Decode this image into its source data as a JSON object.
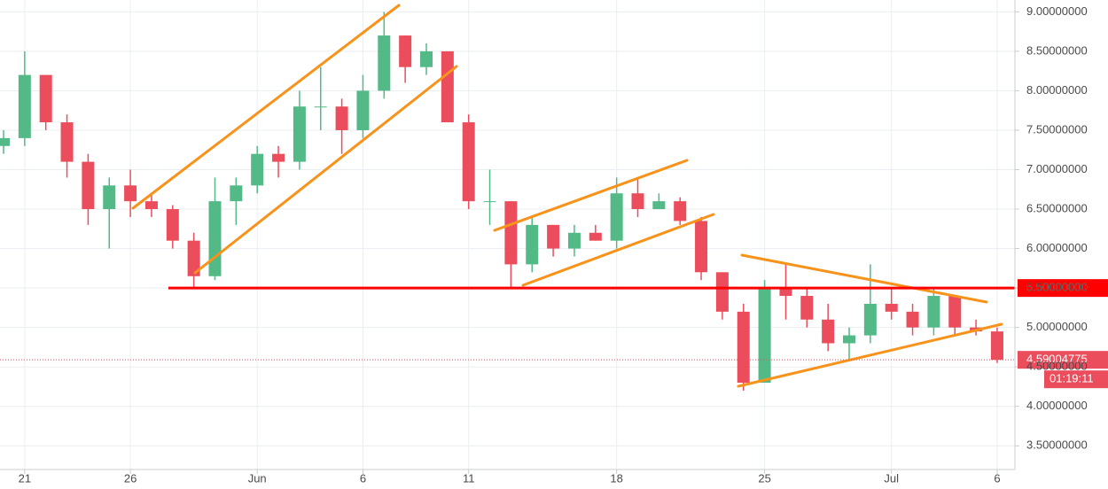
{
  "chart_data": {
    "type": "candlestick",
    "x": [
      "May 20",
      "May 21",
      "May 22",
      "May 23",
      "May 24",
      "May 25",
      "May 26",
      "May 27",
      "May 28",
      "May 29",
      "May 30",
      "May 31",
      "Jun 1",
      "Jun 2",
      "Jun 3",
      "Jun 4",
      "Jun 5",
      "Jun 6",
      "Jun 7",
      "Jun 8",
      "Jun 9",
      "Jun 10",
      "Jun 11",
      "Jun 12",
      "Jun 13",
      "Jun 14",
      "Jun 15",
      "Jun 16",
      "Jun 17",
      "Jun 18",
      "Jun 19",
      "Jun 20",
      "Jun 21",
      "Jun 22",
      "Jun 23",
      "Jun 24",
      "Jun 25",
      "Jun 26",
      "Jun 27",
      "Jun 28",
      "Jun 29",
      "Jun 30",
      "Jul 1",
      "Jul 2",
      "Jul 3",
      "Jul 4",
      "Jul 5",
      "Jul 6"
    ],
    "open": [
      7.3,
      7.4,
      8.2,
      7.6,
      7.1,
      6.5,
      6.8,
      6.6,
      6.5,
      6.1,
      5.65,
      6.6,
      6.8,
      7.2,
      7.1,
      7.8,
      7.8,
      7.5,
      8.0,
      8.7,
      8.3,
      8.5,
      7.6,
      6.6,
      6.6,
      5.8,
      6.3,
      6.0,
      6.2,
      6.1,
      6.7,
      6.5,
      6.6,
      6.35,
      5.7,
      5.2,
      4.3,
      5.5,
      5.4,
      5.1,
      4.8,
      4.9,
      5.3,
      5.2,
      5.0,
      5.4,
      5.0,
      4.95
    ],
    "high": [
      7.5,
      8.5,
      8.2,
      7.7,
      7.2,
      6.9,
      7.0,
      6.7,
      6.55,
      6.2,
      6.9,
      6.9,
      7.3,
      7.3,
      8.0,
      8.3,
      7.9,
      8.2,
      9.0,
      8.7,
      8.6,
      8.5,
      7.7,
      7.0,
      6.6,
      6.4,
      6.3,
      6.3,
      6.3,
      6.9,
      6.9,
      6.7,
      6.65,
      6.4,
      5.7,
      5.3,
      5.6,
      5.8,
      5.5,
      5.3,
      5.0,
      5.8,
      5.5,
      5.3,
      5.5,
      5.4,
      5.1,
      5.0
    ],
    "low": [
      7.2,
      7.3,
      7.5,
      6.9,
      6.3,
      6.0,
      6.4,
      6.4,
      6.0,
      5.5,
      5.6,
      6.3,
      6.7,
      6.9,
      7.0,
      7.5,
      7.2,
      7.4,
      7.9,
      8.1,
      8.2,
      7.6,
      6.5,
      6.3,
      5.5,
      5.7,
      5.9,
      5.9,
      6.1,
      6.0,
      6.4,
      6.5,
      6.3,
      5.6,
      5.1,
      4.2,
      4.3,
      5.1,
      5.0,
      4.7,
      4.6,
      4.8,
      5.1,
      4.9,
      4.9,
      4.9,
      4.9,
      4.55
    ],
    "close": [
      7.4,
      8.2,
      7.6,
      7.1,
      6.5,
      6.8,
      6.6,
      6.5,
      6.1,
      5.65,
      6.6,
      6.8,
      7.2,
      7.1,
      7.8,
      7.8,
      7.5,
      8.0,
      8.7,
      8.3,
      8.5,
      7.6,
      6.6,
      6.6,
      5.8,
      6.3,
      6.0,
      6.2,
      6.1,
      6.7,
      6.5,
      6.6,
      6.35,
      5.7,
      5.2,
      4.3,
      5.5,
      5.4,
      5.1,
      4.8,
      4.9,
      5.3,
      5.2,
      5.0,
      5.4,
      5.0,
      4.95,
      4.59
    ],
    "up_color": "#53b987",
    "down_color": "#eb4d5c",
    "ylim": [
      3.2,
      9.15
    ],
    "yticks": [
      {
        "value": 3.5,
        "label": "3.50000000"
      },
      {
        "value": 4,
        "label": "4.00000000"
      },
      {
        "value": 4.5,
        "label": "4.50000000"
      },
      {
        "value": 5,
        "label": "5.00000000"
      },
      {
        "value": 5.5,
        "label": "5.50000000"
      },
      {
        "value": 6,
        "label": "6.00000000"
      },
      {
        "value": 6.5,
        "label": "6.50000000"
      },
      {
        "value": 7,
        "label": "7.00000000"
      },
      {
        "value": 7.5,
        "label": "7.50000000"
      },
      {
        "value": 8,
        "label": "8.00000000"
      },
      {
        "value": 8.5,
        "label": "8.50000000"
      },
      {
        "value": 9,
        "label": "9.00000000"
      }
    ],
    "xticks": [
      {
        "value": "May 21",
        "label": "21"
      },
      {
        "value": "May 26",
        "label": "26"
      },
      {
        "value": "Jun 1",
        "label": "Jun"
      },
      {
        "value": "Jun 6",
        "label": "6"
      },
      {
        "value": "Jun 11",
        "label": "11"
      },
      {
        "value": "Jun 18",
        "label": "18"
      },
      {
        "value": "Jun 25",
        "label": "25"
      },
      {
        "value": "Jul 1",
        "label": "Jul"
      },
      {
        "value": "Jul 6",
        "label": "6"
      }
    ],
    "grid": true,
    "levels": [
      {
        "value": 5.5,
        "label": "5.50000000",
        "color": "#ff0000"
      }
    ],
    "last_price": {
      "value": 4.59004775,
      "label": "4.59004775",
      "color": "#eb4d5c"
    },
    "countdown": "01:19:11"
  }
}
